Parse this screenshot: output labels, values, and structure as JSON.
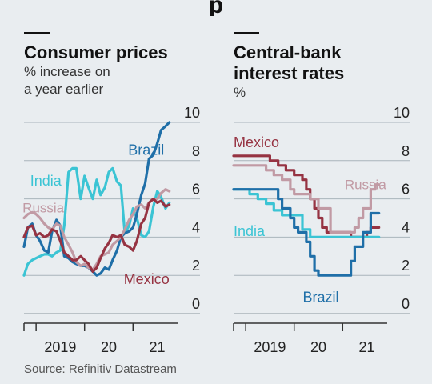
{
  "header": {
    "title": "p"
  },
  "source": "Source: Refinitiv Datastream",
  "colors": {
    "Brazil": "#1f6fa8",
    "India": "#3bc4d4",
    "Russia": "#c19aa4",
    "Mexico": "#963342",
    "grid": "#a9b4bb",
    "axis": "#333333"
  },
  "chart_data": [
    {
      "type": "line",
      "title": "Consumer prices",
      "subtitle": [
        "% increase on",
        "a year earlier"
      ],
      "ylim": [
        0,
        10
      ],
      "yticks": [
        0,
        2,
        4,
        6,
        8,
        10
      ],
      "xlim": [
        2018.75,
        2021.92
      ],
      "xtick_labels": [
        {
          "label": "2019",
          "x": 2019.5
        },
        {
          "label": "20",
          "x": 2020.5
        },
        {
          "label": "21",
          "x": 2021.5
        }
      ],
      "grid": true,
      "series": [
        {
          "name": "India",
          "x": [
            2018.75,
            2018.83,
            2018.92,
            2019.0,
            2019.08,
            2019.17,
            2019.25,
            2019.33,
            2019.42,
            2019.5,
            2019.58,
            2019.67,
            2019.75,
            2019.83,
            2019.92,
            2020.0,
            2020.08,
            2020.17,
            2020.25,
            2020.33,
            2020.42,
            2020.5,
            2020.58,
            2020.67,
            2020.75,
            2020.83,
            2020.92,
            2021.0,
            2021.08,
            2021.17,
            2021.25,
            2021.33,
            2021.42,
            2021.5,
            2021.58,
            2021.67,
            2021.75
          ],
          "values": [
            2.0,
            2.6,
            2.8,
            2.9,
            3.0,
            3.1,
            3.1,
            3.0,
            3.2,
            3.3,
            4.6,
            7.4,
            7.6,
            7.6,
            6.0,
            7.2,
            6.6,
            6.0,
            7.0,
            6.2,
            6.6,
            7.4,
            7.6,
            6.9,
            6.7,
            4.2,
            4.6,
            5.5,
            5.0,
            4.1,
            4.0,
            4.3,
            5.6,
            6.4,
            6.1,
            5.5,
            5.8
          ]
        },
        {
          "name": "Brazil",
          "x": [
            2018.75,
            2018.83,
            2018.92,
            2019.0,
            2019.08,
            2019.17,
            2019.25,
            2019.33,
            2019.42,
            2019.5,
            2019.58,
            2019.67,
            2019.75,
            2019.83,
            2019.92,
            2020.0,
            2020.08,
            2020.17,
            2020.25,
            2020.33,
            2020.42,
            2020.5,
            2020.58,
            2020.67,
            2020.75,
            2020.83,
            2020.92,
            2021.0,
            2021.08,
            2021.17,
            2021.25,
            2021.33,
            2021.42,
            2021.5,
            2021.58,
            2021.67,
            2021.75
          ],
          "values": [
            3.5,
            4.5,
            4.7,
            4.1,
            3.8,
            3.3,
            3.2,
            4.3,
            4.9,
            4.6,
            3.0,
            2.9,
            2.7,
            2.6,
            2.5,
            2.5,
            2.4,
            2.2,
            2.0,
            2.1,
            2.4,
            2.3,
            2.8,
            3.3,
            4.0,
            4.2,
            4.3,
            4.5,
            5.2,
            6.2,
            6.8,
            8.1,
            8.3,
            8.9,
            9.6,
            9.8,
            10.0
          ]
        },
        {
          "name": "Russia",
          "x": [
            2018.75,
            2018.83,
            2018.92,
            2019.0,
            2019.08,
            2019.17,
            2019.25,
            2019.33,
            2019.42,
            2019.5,
            2019.58,
            2019.67,
            2019.75,
            2019.83,
            2019.92,
            2020.0,
            2020.08,
            2020.17,
            2020.25,
            2020.33,
            2020.42,
            2020.5,
            2020.58,
            2020.67,
            2020.75,
            2020.83,
            2020.92,
            2021.0,
            2021.08,
            2021.17,
            2021.25,
            2021.33,
            2021.42,
            2021.5,
            2021.58,
            2021.67,
            2021.75
          ],
          "values": [
            5.0,
            5.2,
            5.3,
            5.2,
            5.0,
            4.7,
            4.5,
            4.4,
            4.7,
            4.6,
            4.0,
            3.6,
            3.2,
            2.7,
            2.5,
            2.6,
            2.4,
            2.3,
            2.6,
            3.0,
            3.1,
            3.2,
            3.6,
            3.8,
            4.0,
            4.4,
            4.9,
            5.2,
            5.6,
            5.7,
            5.5,
            5.8,
            6.0,
            6.0,
            6.3,
            6.5,
            6.4
          ]
        },
        {
          "name": "Mexico",
          "x": [
            2018.75,
            2018.83,
            2018.92,
            2019.0,
            2019.08,
            2019.17,
            2019.25,
            2019.33,
            2019.42,
            2019.5,
            2019.58,
            2019.67,
            2019.75,
            2019.83,
            2019.92,
            2020.0,
            2020.08,
            2020.17,
            2020.25,
            2020.33,
            2020.42,
            2020.5,
            2020.58,
            2020.67,
            2020.75,
            2020.83,
            2020.92,
            2021.0,
            2021.08,
            2021.17,
            2021.25,
            2021.33,
            2021.42,
            2021.5,
            2021.58,
            2021.67,
            2021.75
          ],
          "values": [
            4.0,
            4.5,
            4.6,
            4.1,
            4.2,
            4.0,
            4.1,
            4.4,
            4.3,
            3.8,
            3.2,
            3.0,
            2.8,
            2.8,
            3.0,
            2.8,
            2.6,
            2.2,
            2.4,
            2.9,
            3.4,
            3.7,
            4.1,
            4.0,
            4.1,
            3.6,
            3.5,
            3.3,
            3.8,
            4.7,
            5.0,
            5.8,
            6.0,
            5.8,
            5.9,
            5.6,
            5.7
          ]
        }
      ],
      "annotations": [
        {
          "text": "Brazil",
          "series": "Brazil",
          "x": 2020.9,
          "y": 8.3,
          "anchor": "start",
          "size": 18
        },
        {
          "text": "India",
          "series": "India",
          "x": 2019.2,
          "y": 6.7,
          "anchor": "middle",
          "size": 18
        },
        {
          "text": "Russia",
          "series": "Russia",
          "x": 2018.72,
          "y": 5.3,
          "anchor": "start",
          "size": 17
        },
        {
          "text": "Mexico",
          "series": "Mexico",
          "x": 2021.75,
          "y": 1.55,
          "anchor": "end",
          "size": 18
        }
      ]
    },
    {
      "type": "line",
      "title": "Central-bank interest rates",
      "subtitle": [
        "%"
      ],
      "ylim": [
        0,
        10
      ],
      "yticks": [
        0,
        2,
        4,
        6,
        8,
        10
      ],
      "xlim": [
        2018.75,
        2021.92
      ],
      "xtick_labels": [
        {
          "label": "2019",
          "x": 2019.5
        },
        {
          "label": "20",
          "x": 2020.5
        },
        {
          "label": "21",
          "x": 2021.5
        }
      ],
      "grid": true,
      "step": true,
      "series": [
        {
          "name": "Mexico",
          "x": [
            2018.75,
            2019.5,
            2019.67,
            2019.83,
            2020.0,
            2020.17,
            2020.25,
            2020.33,
            2020.42,
            2020.5,
            2020.58,
            2020.67,
            2020.75,
            2020.92,
            2021.17,
            2021.5,
            2021.58,
            2021.75
          ],
          "values": [
            8.25,
            8.0,
            7.75,
            7.5,
            7.25,
            7.0,
            6.5,
            6.0,
            5.5,
            5.0,
            4.5,
            4.25,
            4.25,
            4.25,
            4.0,
            4.25,
            4.5,
            4.5
          ]
        },
        {
          "name": "Russia",
          "x": [
            2018.75,
            2019.42,
            2019.58,
            2019.75,
            2019.92,
            2020.0,
            2020.33,
            2020.5,
            2020.75,
            2021.17,
            2021.25,
            2021.33,
            2021.42,
            2021.5,
            2021.58,
            2021.67,
            2021.75
          ],
          "values": [
            7.75,
            7.5,
            7.25,
            7.0,
            6.5,
            6.25,
            6.0,
            5.5,
            4.25,
            4.25,
            4.5,
            5.0,
            5.5,
            5.5,
            6.5,
            6.75,
            6.75
          ]
        },
        {
          "name": "India",
          "x": [
            2018.75,
            2018.92,
            2019.08,
            2019.25,
            2019.42,
            2019.58,
            2019.75,
            2020.17,
            2020.33,
            2021.75
          ],
          "values": [
            6.5,
            6.5,
            6.25,
            6.0,
            5.75,
            5.4,
            5.15,
            4.4,
            4.0,
            4.0
          ]
        },
        {
          "name": "Brazil",
          "x": [
            2018.75,
            2019.58,
            2019.67,
            2019.75,
            2019.92,
            2020.0,
            2020.08,
            2020.25,
            2020.33,
            2020.42,
            2020.5,
            2020.58,
            2021.17,
            2021.25,
            2021.33,
            2021.42,
            2021.5,
            2021.58,
            2021.67,
            2021.75
          ],
          "values": [
            6.5,
            6.5,
            6.0,
            5.5,
            5.0,
            4.5,
            4.25,
            3.75,
            3.0,
            2.25,
            2.0,
            2.0,
            2.75,
            3.5,
            3.5,
            4.25,
            4.25,
            5.25,
            5.25,
            5.25
          ]
        }
      ],
      "annotations": [
        {
          "text": "Mexico",
          "series": "Mexico",
          "x": 2018.75,
          "y": 8.7,
          "anchor": "start",
          "size": 18
        },
        {
          "text": "Russia",
          "series": "Russia",
          "x": 2021.9,
          "y": 6.5,
          "anchor": "end",
          "size": 17
        },
        {
          "text": "India",
          "series": "India",
          "x": 2018.75,
          "y": 4.05,
          "anchor": "start",
          "size": 18
        },
        {
          "text": "Brazil",
          "series": "Brazil",
          "x": 2020.55,
          "y": 0.6,
          "anchor": "middle",
          "size": 18
        }
      ]
    }
  ]
}
